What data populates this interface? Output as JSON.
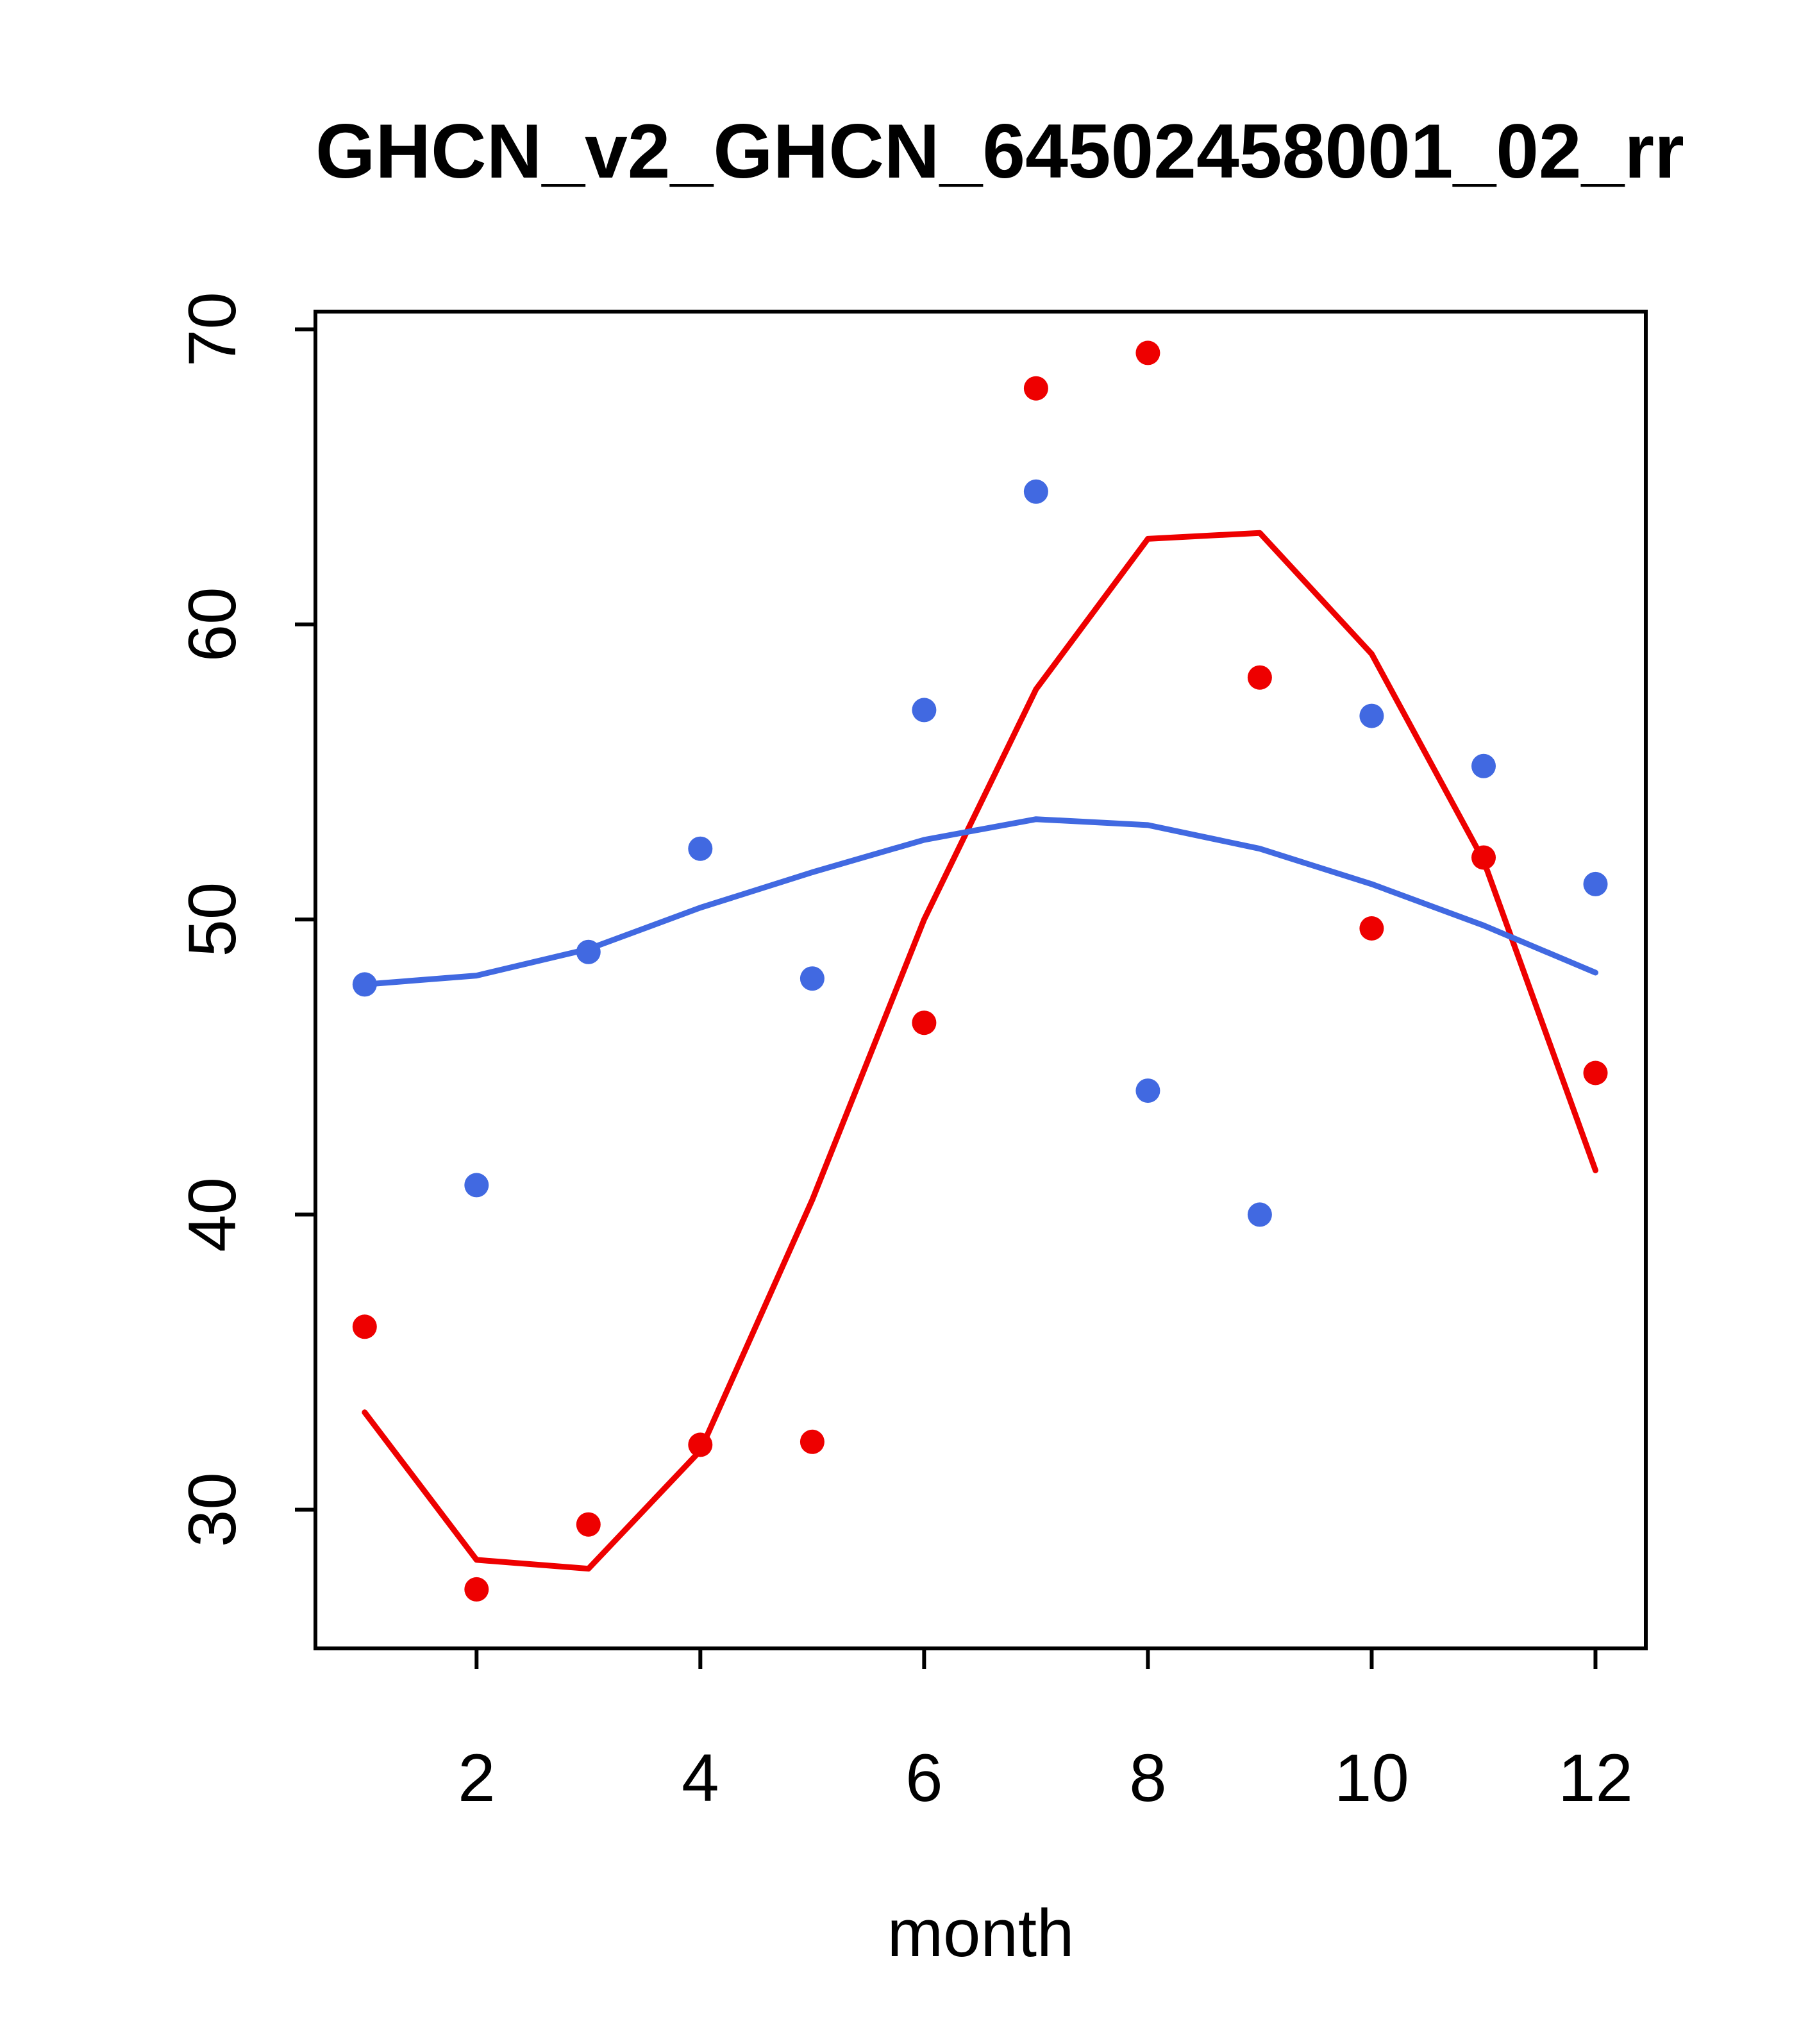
{
  "chart_data": {
    "type": "scatter",
    "title": "GHCN_v2_GHCN_64502458001_02_rr",
    "xlabel": "month",
    "ylabel": "",
    "xlim": [
      0.56,
      12.45
    ],
    "ylim": [
      25.3,
      70.6
    ],
    "x_ticks": [
      2,
      4,
      6,
      8,
      10,
      12
    ],
    "y_ticks": [
      30,
      40,
      50,
      60,
      70
    ],
    "x": [
      1,
      2,
      3,
      4,
      5,
      6,
      7,
      8,
      9,
      10,
      11,
      12
    ],
    "grid": false,
    "legend": "none",
    "series": [
      {
        "name": "red-points",
        "kind": "points",
        "color": "#ee0000",
        "values": [
          36.2,
          27.3,
          29.5,
          32.2,
          32.3,
          46.5,
          68.0,
          69.2,
          58.2,
          49.7,
          52.1,
          44.8
        ]
      },
      {
        "name": "blue-points",
        "kind": "points",
        "color": "#4169e1",
        "values": [
          47.8,
          41.0,
          48.9,
          52.4,
          48.0,
          57.1,
          64.5,
          44.2,
          40.0,
          56.9,
          55.2,
          51.2
        ]
      },
      {
        "name": "red-smooth-line",
        "kind": "line",
        "color": "#ee0000",
        "values": [
          33.3,
          28.3,
          28.0,
          32.0,
          40.5,
          50.0,
          57.8,
          62.9,
          63.1,
          59.0,
          52.0,
          41.5
        ]
      },
      {
        "name": "blue-smooth-line",
        "kind": "line",
        "color": "#4169e1",
        "values": [
          47.8,
          48.1,
          49.0,
          50.4,
          51.6,
          52.7,
          53.4,
          53.2,
          52.4,
          51.2,
          49.8,
          48.2
        ]
      }
    ],
    "colors": {
      "red_series": "#ee0000",
      "blue_series": "#4169e1",
      "axis": "#000000",
      "background": "#ffffff"
    }
  }
}
